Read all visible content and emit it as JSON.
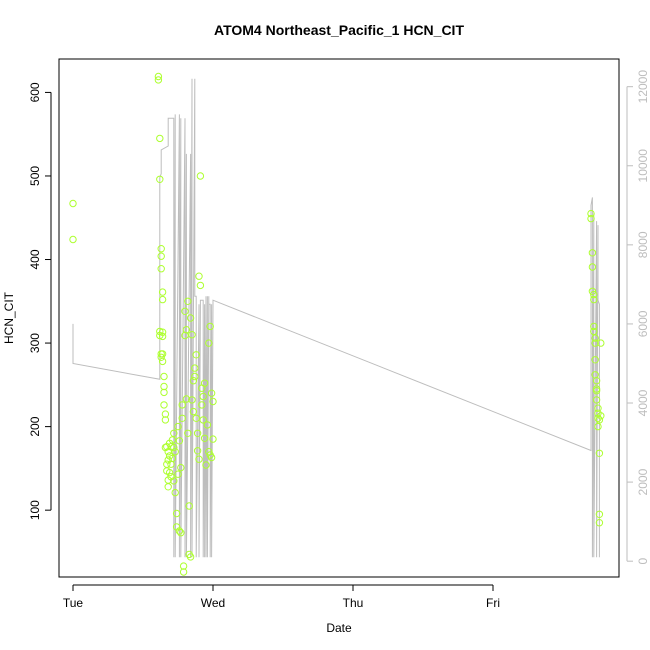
{
  "chart_data": {
    "type": "scatter",
    "title": "ATOM4 Northeast_Pacific_1 HCN_CIT",
    "xlabel": "Date",
    "ylabel": "HCN_CIT",
    "x_ticks": [
      "Tue",
      "Wed",
      "Thu",
      "Fri"
    ],
    "y_ticks": [
      100,
      200,
      300,
      400,
      500,
      600
    ],
    "y2_ticks": [
      0,
      2000,
      4000,
      6000,
      8000,
      10000,
      12000
    ],
    "xlim_days": [
      -0.1,
      3.9
    ],
    "ylim": [
      20,
      640
    ],
    "y2lim": [
      -400,
      12700
    ],
    "colors": {
      "points": "#adff2f",
      "altitude_line": "#bdbdbd",
      "right_axis": "#bdbdbd"
    },
    "series": [
      {
        "kind": "points",
        "x": [
          0.0,
          0.0,
          0.61,
          0.61,
          0.62,
          0.62,
          0.62,
          0.62,
          0.63,
          0.63,
          0.63,
          0.63,
          0.63,
          0.64,
          0.64,
          0.64,
          0.64,
          0.64,
          0.64,
          0.65,
          0.65,
          0.65,
          0.65,
          0.66,
          0.66,
          0.66,
          0.67,
          0.67,
          0.67,
          0.68,
          0.68,
          0.68,
          0.68,
          0.69,
          0.69,
          0.69,
          0.7,
          0.7,
          0.7,
          0.71,
          0.71,
          0.72,
          0.72,
          0.72,
          0.73,
          0.73,
          0.74,
          0.74,
          0.75,
          0.75,
          0.76,
          0.76,
          0.77,
          0.77,
          0.78,
          0.78,
          0.79,
          0.79,
          0.8,
          0.8,
          0.81,
          0.81,
          0.82,
          0.82,
          0.83,
          0.83,
          0.84,
          0.84,
          0.85,
          0.85,
          0.86,
          0.86,
          0.87,
          0.87,
          0.88,
          0.88,
          0.89,
          0.89,
          0.9,
          0.9,
          0.91,
          0.91,
          0.92,
          0.92,
          0.93,
          0.93,
          0.94,
          0.94,
          0.95,
          0.96,
          0.97,
          0.97,
          0.98,
          0.98,
          0.99,
          0.99,
          1.0,
          1.0,
          3.7,
          3.7,
          3.71,
          3.71,
          3.71,
          3.72,
          3.72,
          3.72,
          3.72,
          3.73,
          3.73,
          3.73,
          3.73,
          3.74,
          3.74,
          3.74,
          3.74,
          3.75,
          3.75,
          3.75,
          3.75,
          3.76,
          3.76,
          3.76,
          3.76,
          3.77,
          3.77
        ],
        "y": [
          467,
          424,
          619,
          615,
          545,
          496,
          314,
          309,
          287,
          283,
          413,
          404,
          389,
          361,
          352,
          313,
          308,
          287,
          278,
          260,
          248,
          241,
          226,
          215,
          208,
          175,
          155,
          147,
          176,
          136,
          128,
          160,
          170,
          145,
          180,
          165,
          176,
          155,
          140,
          184,
          162,
          135,
          175,
          192,
          121,
          170,
          80,
          96,
          143,
          200,
          75,
          183,
          73,
          151,
          210,
          226,
          33,
          26,
          309,
          338,
          316,
          233,
          192,
          350,
          105,
          47,
          44,
          330,
          310,
          232,
          255,
          218,
          260,
          270,
          286,
          210,
          192,
          171,
          161,
          380,
          369,
          500,
          246,
          226,
          208,
          236,
          186,
          252,
          154,
          202,
          170,
          300,
          320,
          166,
          163,
          240,
          230,
          185,
          455,
          449,
          408,
          391,
          362,
          358,
          352,
          320,
          314,
          306,
          300,
          280,
          262,
          255,
          245,
          243,
          232,
          222,
          216,
          210,
          200,
          168,
          95,
          85,
          208,
          213,
          300
        ]
      },
      {
        "kind": "line",
        "axis": "y2",
        "x": [
          0.0,
          0.0,
          0.62,
          0.62,
          0.63,
          0.63,
          0.68,
          0.68,
          0.72,
          0.72,
          0.73,
          0.73,
          0.76,
          0.76,
          0.77,
          0.77,
          0.8,
          0.8,
          0.81,
          0.81,
          0.84,
          0.84,
          0.85,
          0.85,
          0.87,
          0.87,
          0.88,
          0.88,
          0.9,
          0.9,
          0.91,
          0.91,
          0.93,
          0.93,
          0.94,
          0.94,
          0.95,
          0.95,
          0.96,
          0.96,
          0.97,
          0.97,
          0.98,
          0.98,
          0.99,
          0.99,
          1.0,
          1.0,
          3.7,
          3.7,
          3.71,
          3.71,
          3.72,
          3.72,
          3.74,
          3.74,
          3.75,
          3.75,
          3.76,
          3.76
        ],
        "y": [
          6000,
          5000,
          4600,
          9700,
          9800,
          10400,
          10500,
          11200,
          11200,
          100,
          11300,
          100,
          11300,
          100,
          11200,
          100,
          11200,
          100,
          10300,
          100,
          10300,
          100,
          12200,
          100,
          12200,
          6700,
          6700,
          100,
          6500,
          100,
          6500,
          6600,
          6600,
          100,
          6500,
          100,
          6700,
          100,
          6700,
          100,
          6700,
          6500,
          6500,
          100,
          6500,
          100,
          6500,
          6600,
          2800,
          9000,
          9200,
          100,
          8800,
          100,
          8600,
          100,
          8500,
          6600,
          6500,
          100
        ]
      }
    ]
  }
}
